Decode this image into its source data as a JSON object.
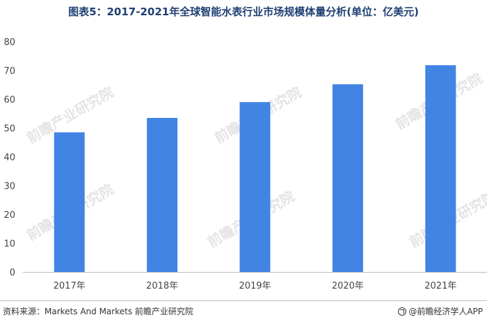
{
  "title": "图表5：2017-2021年全球智能水表行业市场规模体量分析(单位：亿美元)",
  "watermark": "前瞻产业研究院",
  "footer": {
    "source": "资料来源：Markets And Markets 前瞻产业研究院",
    "brand": "@前瞻经济学人APP"
  },
  "colors": {
    "bar": "#4184e4",
    "axis": "#bfbfbf",
    "title": "#1f3f73"
  },
  "chart_data": {
    "type": "bar",
    "title": "图表5：2017-2021年全球智能水表行业市场规模体量分析(单位：亿美元)",
    "categories": [
      "2017年",
      "2018年",
      "2019年",
      "2020年",
      "2021年"
    ],
    "values": [
      48.5,
      53.5,
      59,
      65.2,
      71.8
    ],
    "ylim": [
      0,
      80
    ],
    "yticks": [
      0,
      10,
      20,
      30,
      40,
      50,
      60,
      70,
      80
    ],
    "xlabel": "",
    "ylabel": "",
    "grid": false,
    "legend": "none"
  }
}
